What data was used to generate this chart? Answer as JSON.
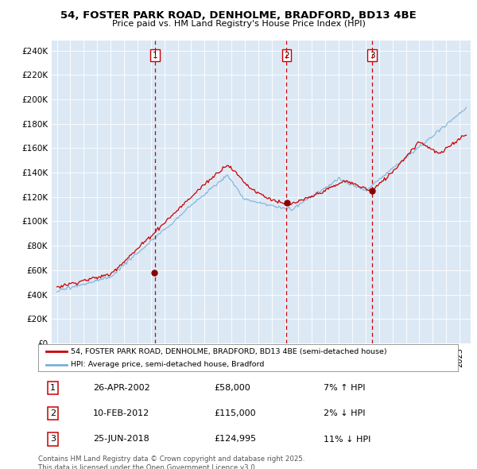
{
  "title": "54, FOSTER PARK ROAD, DENHOLME, BRADFORD, BD13 4BE",
  "subtitle": "Price paid vs. HM Land Registry's House Price Index (HPI)",
  "ylabel_ticks": [
    "£0",
    "£20K",
    "£40K",
    "£60K",
    "£80K",
    "£100K",
    "£120K",
    "£140K",
    "£160K",
    "£180K",
    "£200K",
    "£220K",
    "£240K"
  ],
  "ytick_values": [
    0,
    20000,
    40000,
    60000,
    80000,
    100000,
    120000,
    140000,
    160000,
    180000,
    200000,
    220000,
    240000
  ],
  "ylim": [
    0,
    248000
  ],
  "xlim_start": 1994.6,
  "xlim_end": 2025.8,
  "purchases": [
    {
      "year": 2002.31,
      "price": 58000,
      "label": "1"
    },
    {
      "year": 2012.11,
      "price": 115000,
      "label": "2"
    },
    {
      "year": 2018.48,
      "price": 124995,
      "label": "3"
    }
  ],
  "purchase_info": [
    {
      "num": "1",
      "date": "26-APR-2002",
      "price": "£58,000",
      "change": "7% ↑ HPI"
    },
    {
      "num": "2",
      "date": "10-FEB-2012",
      "price": "£115,000",
      "change": "2% ↓ HPI"
    },
    {
      "num": "3",
      "date": "25-JUN-2018",
      "price": "£124,995",
      "change": "11% ↓ HPI"
    }
  ],
  "legend_line1": "54, FOSTER PARK ROAD, DENHOLME, BRADFORD, BD13 4BE (semi-detached house)",
  "legend_line2": "HPI: Average price, semi-detached house, Bradford",
  "footer": "Contains HM Land Registry data © Crown copyright and database right 2025.\nThis data is licensed under the Open Government Licence v3.0.",
  "bg_color": "#dce9f5",
  "red_line_color": "#cc0000",
  "blue_line_color": "#7bafd4",
  "vline_color": "#cc0000",
  "dot_color": "#8b0000"
}
